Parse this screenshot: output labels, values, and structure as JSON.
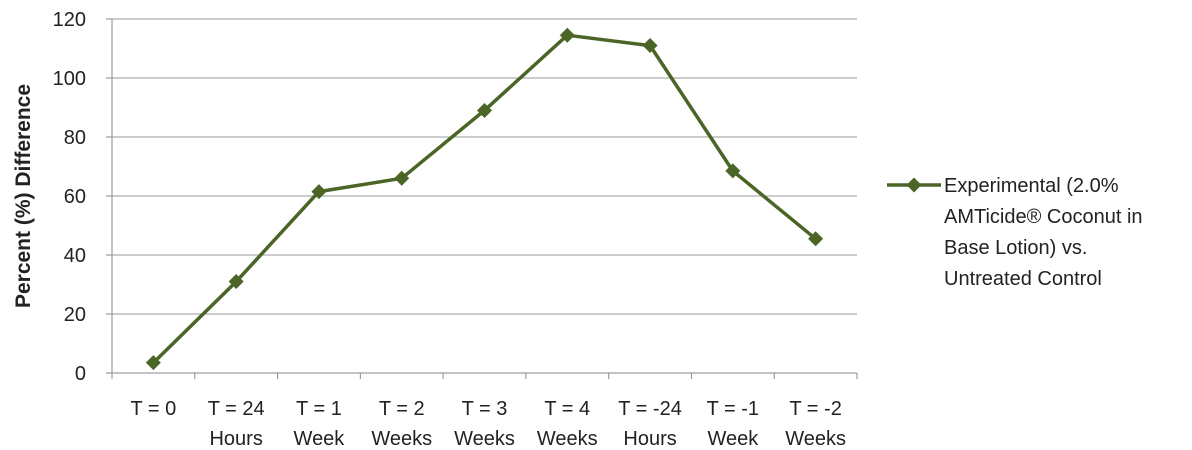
{
  "chart_data": {
    "type": "line",
    "title": "",
    "xlabel": "",
    "ylabel": "Percent (%) Difference",
    "ylim": [
      0,
      120
    ],
    "yticks": [
      0,
      20,
      40,
      60,
      80,
      100,
      120
    ],
    "grid": true,
    "legend_position": "right",
    "categories": [
      [
        "T = 0"
      ],
      [
        "T = 24",
        "Hours"
      ],
      [
        "T = 1",
        "Week"
      ],
      [
        "T = 2",
        "Weeks"
      ],
      [
        "T = 3",
        "Weeks"
      ],
      [
        "T = 4",
        "Weeks"
      ],
      [
        "T = -24",
        "Hours"
      ],
      [
        "T = -1",
        "Week"
      ],
      [
        "T = -2",
        "Weeks"
      ]
    ],
    "series": [
      {
        "name": "Experimental (2.0% AMTicide® Coconut in Base Lotion) vs. Untreated Control",
        "legend_lines": [
          "Experimental (2.0%",
          "AMTicide® Coconut in",
          "Base Lotion) vs.",
          "Untreated Control"
        ],
        "marker": "diamond",
        "color": "#4a6526",
        "values": [
          3.5,
          31,
          61.5,
          66,
          89,
          114.5,
          111,
          68.5,
          45.5
        ]
      }
    ]
  }
}
